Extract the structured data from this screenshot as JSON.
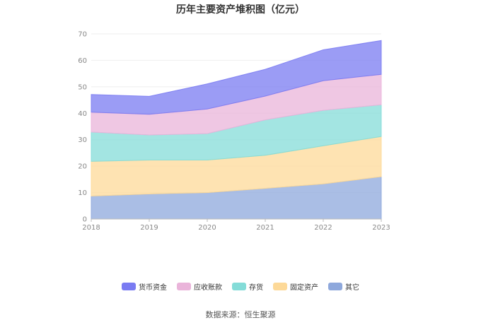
{
  "chart_data": {
    "type": "area",
    "stacked": true,
    "title": "历年主要资产堆积图（亿元）",
    "x": [
      "2018",
      "2019",
      "2020",
      "2021",
      "2022",
      "2023"
    ],
    "ylim": [
      0,
      70
    ],
    "yticks": [
      0,
      10,
      20,
      30,
      40,
      50,
      60,
      70
    ],
    "grid": true,
    "legend_position": "bottom",
    "series": [
      {
        "name": "其它",
        "color": "#8ea8dc",
        "values": [
          8.7,
          9.5,
          10.0,
          11.6,
          13.3,
          16.0
        ]
      },
      {
        "name": "固定资产",
        "color": "#fdd998",
        "values": [
          13.1,
          12.8,
          12.3,
          12.5,
          14.4,
          15.2
        ]
      },
      {
        "name": "存货",
        "color": "#84dcd8",
        "values": [
          11.1,
          9.5,
          10.0,
          13.4,
          13.4,
          12.0
        ]
      },
      {
        "name": "应收账款",
        "color": "#eab4da",
        "values": [
          7.5,
          7.8,
          9.3,
          9.0,
          11.2,
          11.5
        ]
      },
      {
        "name": "货币资金",
        "color": "#7a7bf2",
        "values": [
          6.7,
          6.8,
          9.5,
          10.1,
          11.7,
          12.8
        ]
      }
    ],
    "legend_order": [
      "货币资金",
      "应收账款",
      "存货",
      "固定资产",
      "其它"
    ],
    "source": "数据来源：恒生聚源"
  }
}
